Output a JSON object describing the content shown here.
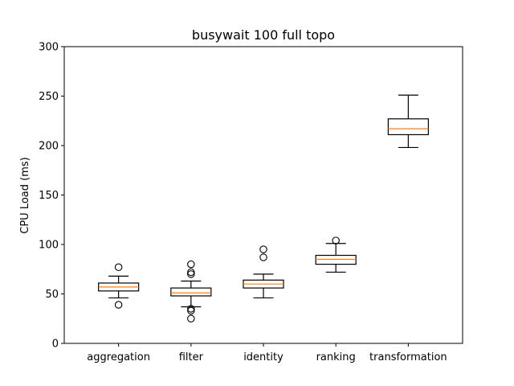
{
  "chart_data": {
    "type": "box",
    "title": "busywait 100 full topo",
    "xlabel": "",
    "ylabel": "CPU Load (ms)",
    "ylim": [
      0,
      300
    ],
    "yticks": [
      0,
      50,
      100,
      150,
      200,
      250,
      300
    ],
    "grid": false,
    "categories": [
      "aggregation",
      "filter",
      "identity",
      "ranking",
      "transformation"
    ],
    "boxes": [
      {
        "category": "aggregation",
        "whisker_low": 46,
        "q1": 53,
        "median": 57,
        "q3": 61,
        "whisker_high": 68,
        "outliers": [
          77,
          39
        ]
      },
      {
        "category": "filter",
        "whisker_low": 37,
        "q1": 48,
        "median": 51,
        "q3": 56,
        "whisker_high": 63,
        "outliers": [
          80,
          72,
          70,
          35,
          33,
          25
        ]
      },
      {
        "category": "identity",
        "whisker_low": 46,
        "q1": 56,
        "median": 60,
        "q3": 64,
        "whisker_high": 70,
        "outliers": [
          95,
          87
        ]
      },
      {
        "category": "ranking",
        "whisker_low": 72,
        "q1": 80,
        "median": 85,
        "q3": 89,
        "whisker_high": 101,
        "outliers": [
          104
        ]
      },
      {
        "category": "transformation",
        "whisker_low": 198,
        "q1": 211,
        "median": 217,
        "q3": 227,
        "whisker_high": 251,
        "outliers": []
      }
    ],
    "colors": {
      "box": "#000000",
      "median": "#ff7f0e",
      "outlier": "#000000"
    }
  }
}
